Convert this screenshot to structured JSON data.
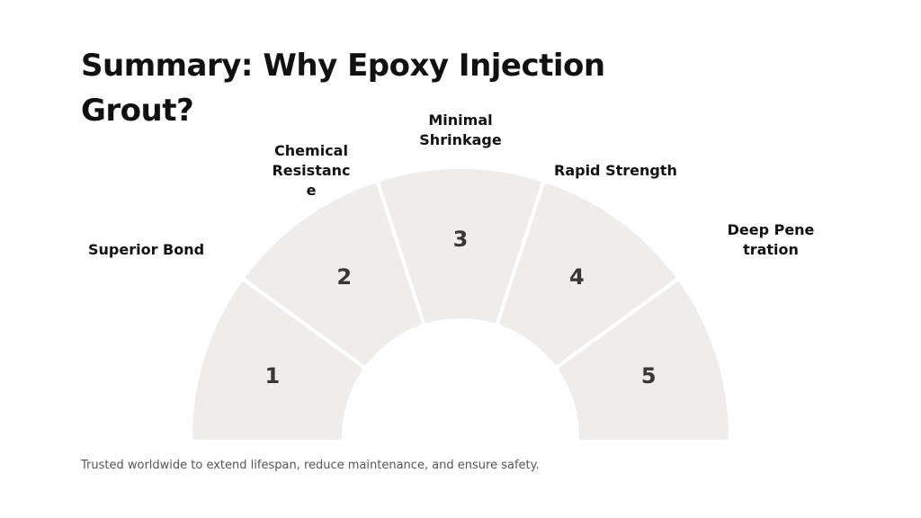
{
  "title": "Summary: Why Epoxy Injection Grout?",
  "segments": [
    {
      "number": "1",
      "label": "Superior Bond"
    },
    {
      "number": "2",
      "label": "Chemical Resistance"
    },
    {
      "number": "3",
      "label": "Minimal Shrinkage"
    },
    {
      "number": "4",
      "label": "Rapid Strength"
    },
    {
      "number": "5",
      "label": "Deep Penetration"
    }
  ],
  "footer": "Trusted worldwide to extend lifespan, reduce maintenance, and ensure safety.",
  "colors": {
    "segment_fill": "#efecec",
    "number_text": "#3b3636",
    "title_text": "#111111",
    "footer_text": "#555555"
  }
}
